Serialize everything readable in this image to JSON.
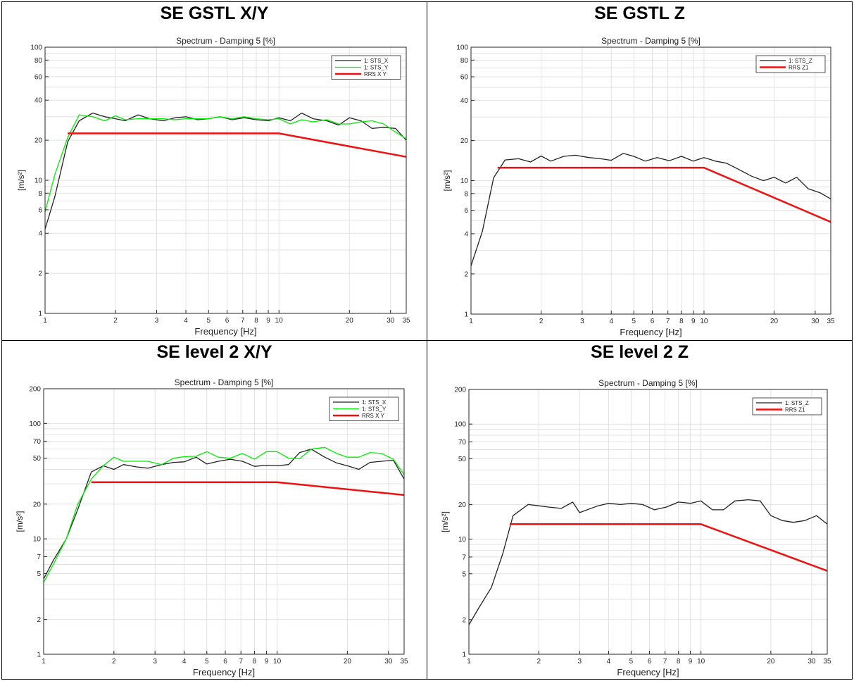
{
  "chart_data": [
    {
      "type": "line",
      "panel_title": "SE GSTL X/Y",
      "title": "Spectrum - Damping 5 [%]",
      "xlabel": "Frequency [Hz]",
      "ylabel": "[m/s²]",
      "xscale": "log",
      "yscale": "log",
      "xlim": [
        1,
        35
      ],
      "ylim": [
        1,
        100
      ],
      "grid": true,
      "legend_position": "top-right",
      "xticks": [
        1,
        2,
        3,
        4,
        5,
        6,
        7,
        8,
        9,
        10,
        20,
        30,
        35
      ],
      "yticks": [
        1,
        2,
        4,
        6,
        8,
        10,
        20,
        40,
        60,
        80,
        100
      ],
      "series": [
        {
          "name": "1: STS_X",
          "color": "#222222",
          "x": [
            1,
            1.1,
            1.25,
            1.4,
            1.6,
            1.8,
            2.0,
            2.2,
            2.5,
            2.8,
            3.2,
            3.6,
            4.0,
            4.5,
            5.0,
            5.6,
            6.3,
            7.1,
            8.0,
            9.0,
            10,
            11.2,
            12.5,
            14,
            16,
            18,
            20,
            22.4,
            25,
            28,
            31.5,
            35
          ],
          "values": [
            4.3,
            7.5,
            19.5,
            28,
            32,
            30,
            29,
            28,
            31,
            29,
            28,
            29.5,
            30,
            28.5,
            29,
            30,
            28.5,
            29.5,
            28.5,
            28,
            29.5,
            28,
            32,
            29,
            28,
            26,
            29.5,
            28,
            24.5,
            25,
            24.5,
            20
          ]
        },
        {
          "name": "1: STS_Y",
          "color": "#00ee00",
          "x": [
            1,
            1.1,
            1.25,
            1.4,
            1.6,
            1.8,
            2.0,
            2.2,
            2.5,
            2.8,
            3.2,
            3.6,
            4.0,
            4.5,
            5.0,
            5.6,
            6.3,
            7.1,
            8.0,
            9.0,
            10,
            11.2,
            12.5,
            14,
            16,
            18,
            20,
            22.4,
            25,
            28,
            31.5,
            35
          ],
          "values": [
            5.8,
            11,
            21,
            31,
            30,
            28,
            30.5,
            28.5,
            29,
            29,
            29,
            28.5,
            29,
            29,
            29,
            30,
            29,
            30,
            29,
            28.5,
            29,
            26.5,
            28.5,
            27.5,
            28.5,
            26.5,
            26.5,
            27.5,
            28,
            26.5,
            23,
            20.5
          ]
        },
        {
          "name": "RRS X Y",
          "color": "#ee1111",
          "x": [
            1.25,
            10,
            35
          ],
          "values": [
            22.5,
            22.5,
            15
          ]
        }
      ]
    },
    {
      "type": "line",
      "panel_title": "SE GSTL Z",
      "title": "Spectrum - Damping 5 [%]",
      "xlabel": "Frequency [Hz]",
      "ylabel": "[m/s²]",
      "xscale": "log",
      "yscale": "log",
      "xlim": [
        1,
        35
      ],
      "ylim": [
        1,
        100
      ],
      "grid": true,
      "legend_position": "top-right",
      "xticks": [
        1,
        2,
        3,
        4,
        5,
        6,
        7,
        8,
        9,
        10,
        20,
        30,
        35
      ],
      "yticks": [
        1,
        2,
        4,
        6,
        8,
        10,
        20,
        40,
        60,
        80,
        100
      ],
      "series": [
        {
          "name": "1: STS_Z",
          "color": "#222222",
          "x": [
            1,
            1.12,
            1.25,
            1.4,
            1.6,
            1.8,
            2.0,
            2.2,
            2.5,
            2.8,
            3.2,
            3.6,
            4.0,
            4.5,
            5.0,
            5.6,
            6.3,
            7.1,
            8.0,
            9.0,
            10,
            11.2,
            12.5,
            14,
            16,
            18,
            20,
            22.4,
            25,
            28,
            31.5,
            35
          ],
          "values": [
            2.3,
            4.2,
            10.5,
            14.3,
            14.6,
            13.8,
            15.3,
            14.0,
            15.2,
            15.5,
            14.9,
            14.6,
            14.2,
            16.0,
            15.2,
            14.0,
            14.9,
            14.1,
            15.2,
            14.0,
            14.9,
            14.0,
            13.5,
            12.2,
            10.8,
            10.0,
            10.6,
            9.6,
            10.6,
            8.7,
            8.1,
            7.3
          ]
        },
        {
          "name": "RRS Z1",
          "color": "#ee1111",
          "x": [
            1.3,
            10,
            35
          ],
          "values": [
            12.5,
            12.5,
            4.9
          ]
        }
      ]
    },
    {
      "type": "line",
      "panel_title": "SE level 2 X/Y",
      "title": "Spectrum - Damping 5 [%]",
      "xlabel": "Frequency [Hz]",
      "ylabel": "[m/s²]",
      "xscale": "log",
      "yscale": "log",
      "xlim": [
        1,
        35
      ],
      "ylim": [
        1,
        200
      ],
      "grid": true,
      "legend_position": "top-right",
      "xticks": [
        1,
        2,
        3,
        4,
        5,
        6,
        7,
        8,
        9,
        10,
        20,
        30,
        35
      ],
      "yticks": [
        1,
        2,
        5,
        7,
        10,
        20,
        50,
        70,
        100,
        200
      ],
      "series": [
        {
          "name": "1: STS_X",
          "color": "#222222",
          "x": [
            1,
            1.1,
            1.25,
            1.4,
            1.6,
            1.8,
            2.0,
            2.2,
            2.5,
            2.8,
            3.2,
            3.6,
            4.0,
            4.5,
            5.0,
            5.6,
            6.3,
            7.1,
            8.0,
            9.0,
            10,
            11.2,
            12.5,
            14,
            16,
            18,
            20,
            22.4,
            25,
            28,
            31.5,
            35
          ],
          "values": [
            4.5,
            6.5,
            10,
            18,
            38,
            43,
            40,
            44,
            42,
            41,
            44,
            46,
            46.5,
            51,
            44.5,
            47,
            49,
            47,
            42.5,
            43.5,
            43,
            44,
            56,
            60,
            51,
            45.5,
            43,
            40,
            46,
            47,
            48,
            33
          ]
        },
        {
          "name": "1: STS_Y",
          "color": "#00ee00",
          "x": [
            1,
            1.1,
            1.25,
            1.4,
            1.6,
            1.8,
            2.0,
            2.2,
            2.5,
            2.8,
            3.2,
            3.6,
            4.0,
            4.5,
            5.0,
            5.6,
            6.3,
            7.1,
            8.0,
            9.0,
            10,
            11.2,
            12.5,
            14,
            16,
            18,
            20,
            22.4,
            25,
            28,
            31.5,
            35
          ],
          "values": [
            4.2,
            6,
            10,
            20,
            33,
            43,
            51,
            47,
            47,
            47,
            44,
            50,
            51.5,
            52,
            57,
            51,
            50,
            55,
            49,
            57,
            57,
            50,
            49.5,
            60,
            62,
            55,
            51,
            51,
            56,
            55,
            49,
            36
          ]
        },
        {
          "name": "RRS X Y",
          "color": "#ee1111",
          "x": [
            1.6,
            10,
            35
          ],
          "values": [
            31,
            31,
            24
          ]
        }
      ]
    },
    {
      "type": "line",
      "panel_title": "SE level 2 Z",
      "title": "Spectrum - Damping 5 [%]",
      "xlabel": "Frequency [Hz]",
      "ylabel": "[m/s²]",
      "xscale": "log",
      "yscale": "log",
      "xlim": [
        1,
        35
      ],
      "ylim": [
        1,
        200
      ],
      "grid": true,
      "legend_position": "top-right",
      "xticks": [
        1,
        2,
        3,
        4,
        5,
        6,
        7,
        8,
        9,
        10,
        20,
        30,
        35
      ],
      "yticks": [
        1,
        2,
        5,
        7,
        10,
        20,
        50,
        70,
        100,
        200
      ],
      "series": [
        {
          "name": "1: STS_Z",
          "color": "#222222",
          "x": [
            1,
            1.1,
            1.25,
            1.4,
            1.55,
            1.8,
            2.0,
            2.2,
            2.5,
            2.8,
            3.0,
            3.6,
            4.0,
            4.5,
            5.0,
            5.6,
            6.3,
            7.1,
            8.0,
            9.0,
            10,
            11.2,
            12.5,
            14,
            16,
            18,
            20,
            22.4,
            25,
            28,
            31.5,
            35
          ],
          "values": [
            1.8,
            2.5,
            3.8,
            7.5,
            16,
            20,
            19.5,
            19,
            18.5,
            21,
            17,
            19.5,
            20.5,
            20,
            20.5,
            20,
            18,
            19,
            21,
            20.5,
            21.5,
            18,
            18,
            21.5,
            22,
            21.5,
            16,
            14.5,
            14,
            14.5,
            16,
            13.5
          ]
        },
        {
          "name": "RRS Z1",
          "color": "#ee1111",
          "x": [
            1.5,
            10,
            35
          ],
          "values": [
            13.5,
            13.5,
            5.3
          ]
        }
      ]
    }
  ]
}
